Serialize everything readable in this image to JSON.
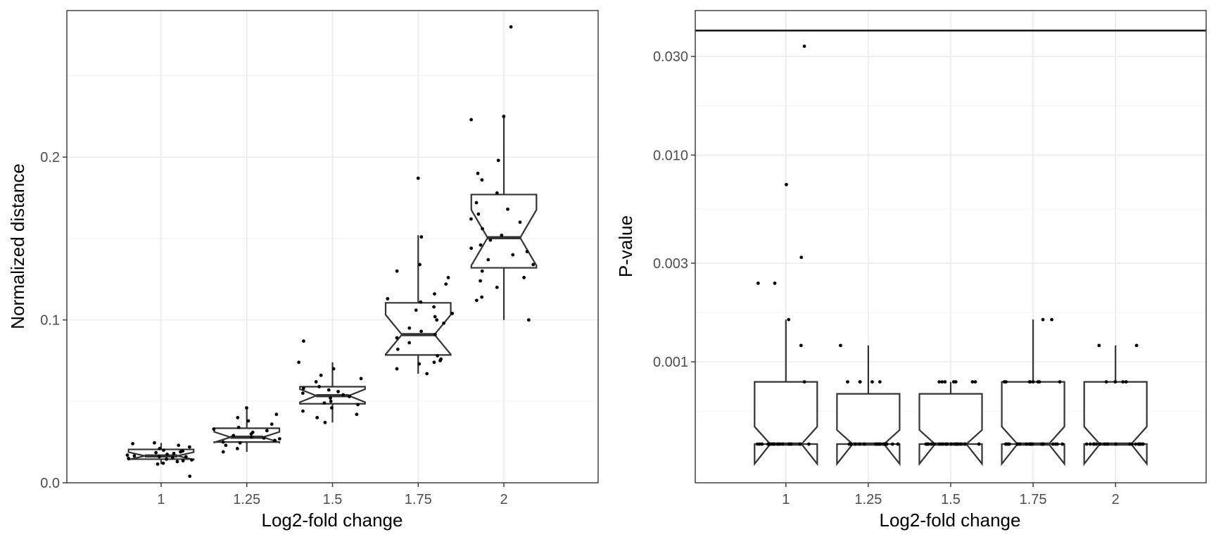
{
  "chart_data": [
    {
      "type": "boxplot",
      "notched": true,
      "xlabel": "Log2-fold change",
      "ylabel": "Normalized distance",
      "categories": [
        "1",
        "1.25",
        "1.5",
        "1.75",
        "2"
      ],
      "ylim": [
        0,
        0.29
      ],
      "yticks": [
        0.0,
        0.1,
        0.2
      ],
      "ytick_labels": [
        "0.0",
        "0.1",
        "0.2"
      ],
      "grid": true,
      "boxes": [
        {
          "category": "1",
          "q1": 0.0145,
          "median": 0.0165,
          "q3": 0.0205,
          "whisker_low": 0.0115,
          "whisker_high": 0.0245
        },
        {
          "category": "1.25",
          "q1": 0.025,
          "median": 0.028,
          "q3": 0.0335,
          "whisker_low": 0.019,
          "whisker_high": 0.046
        },
        {
          "category": "1.5",
          "q1": 0.0485,
          "median": 0.0535,
          "q3": 0.059,
          "whisker_low": 0.037,
          "whisker_high": 0.074
        },
        {
          "category": "1.75",
          "q1": 0.0785,
          "median": 0.091,
          "q3": 0.1105,
          "whisker_low": 0.067,
          "whisker_high": 0.152
        },
        {
          "category": "2",
          "q1": 0.132,
          "median": 0.1505,
          "q3": 0.177,
          "whisker_low": 0.1,
          "whisker_high": 0.226
        }
      ],
      "points": [
        {
          "category": "1",
          "values": [
            0.004,
            0.0115,
            0.012,
            0.013,
            0.0135,
            0.014,
            0.0145,
            0.015,
            0.0155,
            0.016,
            0.016,
            0.0165,
            0.017,
            0.0175,
            0.018,
            0.0185,
            0.019,
            0.0195,
            0.02,
            0.021,
            0.022,
            0.023,
            0.024,
            0.0245
          ]
        },
        {
          "category": "1.25",
          "values": [
            0.019,
            0.021,
            0.023,
            0.0245,
            0.025,
            0.026,
            0.027,
            0.0275,
            0.028,
            0.029,
            0.03,
            0.031,
            0.032,
            0.033,
            0.034,
            0.036,
            0.038,
            0.04,
            0.042,
            0.046
          ]
        },
        {
          "category": "1.5",
          "values": [
            0.037,
            0.04,
            0.042,
            0.044,
            0.046,
            0.048,
            0.049,
            0.05,
            0.052,
            0.053,
            0.054,
            0.055,
            0.056,
            0.057,
            0.058,
            0.059,
            0.062,
            0.064,
            0.066,
            0.07,
            0.074,
            0.087
          ]
        },
        {
          "category": "1.75",
          "values": [
            0.067,
            0.07,
            0.073,
            0.074,
            0.075,
            0.076,
            0.078,
            0.082,
            0.086,
            0.089,
            0.091,
            0.093,
            0.095,
            0.098,
            0.1,
            0.102,
            0.104,
            0.106,
            0.108,
            0.111,
            0.113,
            0.116,
            0.122,
            0.126,
            0.13,
            0.134,
            0.151,
            0.187
          ]
        },
        {
          "category": "2",
          "values": [
            0.1,
            0.112,
            0.114,
            0.12,
            0.124,
            0.126,
            0.13,
            0.134,
            0.137,
            0.14,
            0.142,
            0.144,
            0.146,
            0.149,
            0.152,
            0.156,
            0.16,
            0.162,
            0.165,
            0.168,
            0.172,
            0.178,
            0.186,
            0.19,
            0.198,
            0.223,
            0.225,
            0.28
          ]
        }
      ]
    },
    {
      "type": "boxplot",
      "notched": true,
      "xlabel": "Log2-fold change",
      "ylabel": "P-value",
      "categories": [
        "1",
        "1.25",
        "1.5",
        "1.75",
        "2"
      ],
      "yscale": "log10",
      "ylim": [
        0.00026,
        0.05
      ],
      "yticks": [
        0.001,
        0.003,
        0.01,
        0.03
      ],
      "ytick_labels": [
        "0.001",
        "0.003",
        "0.010",
        "0.030"
      ],
      "grid": true,
      "reference_line": 0.04,
      "boxes": [
        {
          "category": "1",
          "q1": 0.0004,
          "median": 0.0004,
          "q3": 0.0008,
          "whisker_low": 0.0004,
          "whisker_high": 0.0016
        },
        {
          "category": "1.25",
          "q1": 0.0004,
          "median": 0.0004,
          "q3": 0.0007,
          "whisker_low": 0.0004,
          "whisker_high": 0.0012
        },
        {
          "category": "1.5",
          "q1": 0.0004,
          "median": 0.0004,
          "q3": 0.0007,
          "whisker_low": 0.0004,
          "whisker_high": 0.0008
        },
        {
          "category": "1.75",
          "q1": 0.0004,
          "median": 0.0004,
          "q3": 0.0008,
          "whisker_low": 0.0004,
          "whisker_high": 0.0016
        },
        {
          "category": "2",
          "q1": 0.0004,
          "median": 0.0004,
          "q3": 0.0008,
          "whisker_low": 0.0004,
          "whisker_high": 0.0012
        }
      ],
      "points": [
        {
          "category": "1",
          "values": [
            0.0004,
            0.0004,
            0.0004,
            0.0004,
            0.0004,
            0.0004,
            0.0004,
            0.0004,
            0.0004,
            0.0004,
            0.0004,
            0.0004,
            0.0004,
            0.0004,
            0.0004,
            0.0004,
            0.0004,
            0.0008,
            0.0012,
            0.0016,
            0.0024,
            0.0024,
            0.0032,
            0.0072,
            0.0336
          ]
        },
        {
          "category": "1.25",
          "values": [
            0.0004,
            0.0004,
            0.0004,
            0.0004,
            0.0004,
            0.0004,
            0.0004,
            0.0004,
            0.0004,
            0.0004,
            0.0004,
            0.0004,
            0.0004,
            0.0004,
            0.0004,
            0.0004,
            0.0004,
            0.0008,
            0.0008,
            0.0008,
            0.0008,
            0.0008,
            0.0012
          ]
        },
        {
          "category": "1.5",
          "values": [
            0.0004,
            0.0004,
            0.0004,
            0.0004,
            0.0004,
            0.0004,
            0.0004,
            0.0004,
            0.0004,
            0.0004,
            0.0004,
            0.0004,
            0.0004,
            0.0004,
            0.0004,
            0.0004,
            0.0004,
            0.0008,
            0.0008,
            0.0008,
            0.0008,
            0.0008,
            0.0008,
            0.0008
          ]
        },
        {
          "category": "1.75",
          "values": [
            0.0004,
            0.0004,
            0.0004,
            0.0004,
            0.0004,
            0.0004,
            0.0004,
            0.0004,
            0.0004,
            0.0004,
            0.0004,
            0.0004,
            0.0004,
            0.0004,
            0.0004,
            0.0004,
            0.0004,
            0.0004,
            0.0008,
            0.0008,
            0.0008,
            0.0008,
            0.0008,
            0.0008,
            0.0008,
            0.0008,
            0.0016,
            0.0016
          ]
        },
        {
          "category": "2",
          "values": [
            0.0004,
            0.0004,
            0.0004,
            0.0004,
            0.0004,
            0.0004,
            0.0004,
            0.0004,
            0.0004,
            0.0004,
            0.0004,
            0.0004,
            0.0004,
            0.0004,
            0.0004,
            0.0004,
            0.0004,
            0.0004,
            0.0008,
            0.0008,
            0.0008,
            0.0008,
            0.0012,
            0.0012
          ]
        }
      ]
    }
  ]
}
